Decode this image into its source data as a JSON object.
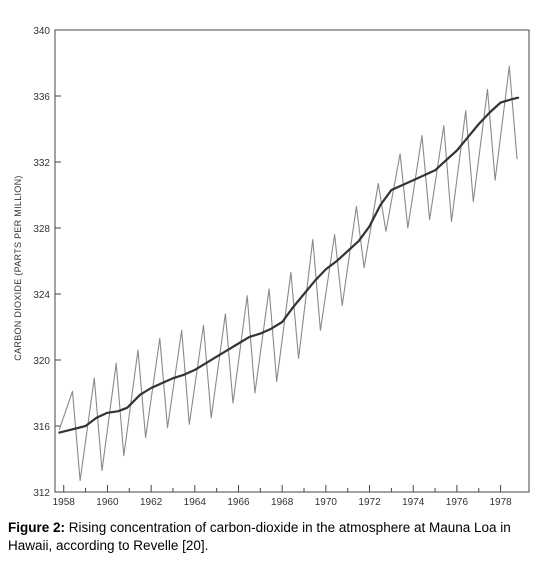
{
  "chart_data": {
    "type": "line",
    "ylabel": "CARBON DIOXIDE (PARTS PER MILLION)",
    "xlabel": "",
    "xlim": [
      1957.6,
      1979.3
    ],
    "ylim": [
      312,
      340
    ],
    "x_ticks": [
      1958,
      1960,
      1962,
      1964,
      1966,
      1968,
      1970,
      1972,
      1974,
      1976,
      1978
    ],
    "x_tick_labels": [
      "1958",
      "1960",
      "1962",
      "1964",
      "1966",
      "1968",
      "1970",
      "1972",
      "1974",
      "1976",
      "1978"
    ],
    "y_ticks": [
      312,
      316,
      320,
      324,
      328,
      332,
      336,
      340
    ],
    "y_tick_labels": [
      "312",
      "316",
      "320",
      "324",
      "328",
      "332",
      "336",
      "340"
    ],
    "grid": false,
    "series": [
      {
        "role": "monthly",
        "color": "#8a8a8a",
        "x": [
          1957.8,
          1958.4,
          1958.75,
          1959.4,
          1959.75,
          1960.4,
          1960.75,
          1961.4,
          1961.75,
          1962.4,
          1962.75,
          1963.4,
          1963.75,
          1964.4,
          1964.75,
          1965.4,
          1965.75,
          1966.4,
          1966.75,
          1967.4,
          1967.75,
          1968.4,
          1968.75,
          1969.4,
          1969.75,
          1970.4,
          1970.75,
          1971.4,
          1971.75,
          1972.4,
          1972.75,
          1973.4,
          1973.75,
          1974.4,
          1974.75,
          1975.4,
          1975.75,
          1976.4,
          1976.75,
          1977.4,
          1977.75,
          1978.4,
          1978.75
        ],
        "y": [
          315.8,
          318.1,
          312.7,
          318.9,
          313.3,
          319.8,
          314.2,
          320.6,
          315.3,
          321.3,
          315.9,
          321.8,
          316.1,
          322.1,
          316.5,
          322.8,
          317.4,
          323.9,
          318.0,
          324.3,
          318.7,
          325.3,
          320.1,
          327.3,
          321.8,
          327.6,
          323.3,
          329.3,
          325.6,
          330.7,
          327.8,
          332.5,
          328.0,
          333.6,
          328.5,
          334.2,
          328.4,
          335.1,
          329.6,
          336.4,
          330.9,
          337.8,
          332.2
        ]
      },
      {
        "role": "trend",
        "color": "#333333",
        "x": [
          1957.8,
          1958.4,
          1959.0,
          1959.5,
          1960.0,
          1960.5,
          1960.9,
          1961.2,
          1961.5,
          1962.0,
          1962.5,
          1963.0,
          1963.5,
          1964.0,
          1964.5,
          1965.0,
          1965.5,
          1966.0,
          1966.5,
          1967.0,
          1967.5,
          1968.0,
          1968.5,
          1969.0,
          1969.5,
          1970.0,
          1970.5,
          1971.0,
          1971.5,
          1972.0,
          1972.5,
          1973.0,
          1973.5,
          1974.0,
          1974.5,
          1975.0,
          1975.5,
          1976.0,
          1976.5,
          1977.0,
          1977.5,
          1978.0,
          1978.5,
          1978.8
        ],
        "y": [
          315.6,
          315.8,
          316.0,
          316.5,
          316.8,
          316.9,
          317.1,
          317.5,
          317.9,
          318.3,
          318.6,
          318.9,
          319.1,
          319.4,
          319.8,
          320.2,
          320.6,
          321.0,
          321.4,
          321.6,
          321.9,
          322.3,
          323.2,
          324.0,
          324.8,
          325.5,
          326.0,
          326.6,
          327.2,
          328.1,
          329.4,
          330.3,
          330.6,
          330.9,
          331.2,
          331.5,
          332.1,
          332.7,
          333.5,
          334.3,
          335.0,
          335.6,
          335.8,
          335.9
        ]
      }
    ]
  },
  "caption": {
    "label": "Figure 2:",
    "text": " Rising concentration of carbon-dioxide in the atmosphere at Mauna Loa in Hawaii, according to Revelle [20]."
  }
}
